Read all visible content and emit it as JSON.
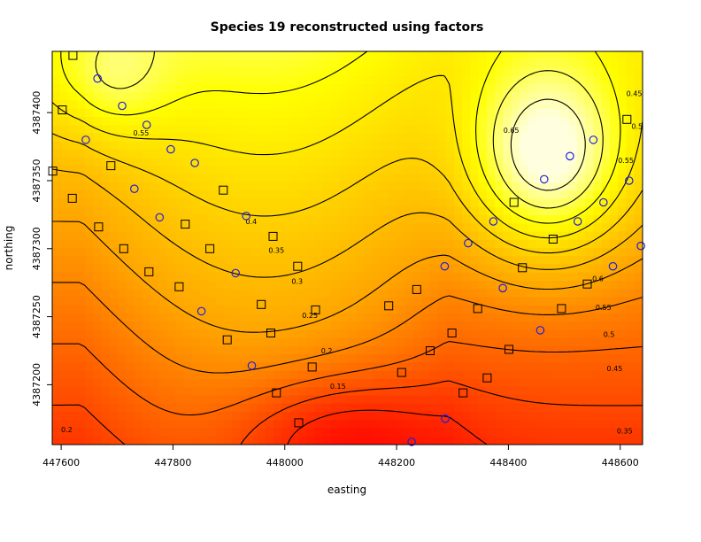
{
  "chart_data": {
    "type": "heatmap",
    "title": "Species 19 reconstructed using factors",
    "xlabel": "easting",
    "ylabel": "northing",
    "xlim": [
      447584,
      448640
    ],
    "ylim": [
      4387156,
      4387445
    ],
    "x_ticks": [
      447600,
      447800,
      448000,
      448200,
      448400,
      448600
    ],
    "y_ticks": [
      4387200,
      4387250,
      4387300,
      4387350,
      4387400
    ],
    "color_scale": {
      "low": "#ff0000",
      "mid": "#ffa500",
      "high_yellow": "#ffff00",
      "top": "#ffffe0"
    },
    "contour_levels": [
      0.1,
      0.15,
      0.2,
      0.25,
      0.3,
      0.35,
      0.4,
      0.45,
      0.5,
      0.55,
      0.6,
      0.65
    ],
    "contour_labels": [
      {
        "text": "0.65",
        "x": 448405,
        "y": 4387387
      },
      {
        "text": "0.6",
        "x": 448560,
        "y": 4387278
      },
      {
        "text": "0.55",
        "x": 448570,
        "y": 4387257
      },
      {
        "text": "0.5",
        "x": 448580,
        "y": 4387237
      },
      {
        "text": "0.45",
        "x": 448590,
        "y": 4387212
      },
      {
        "text": "0.4",
        "x": 447940,
        "y": 4387320
      },
      {
        "text": "0.35",
        "x": 447985,
        "y": 4387299
      },
      {
        "text": "0.3",
        "x": 448022,
        "y": 4387276
      },
      {
        "text": "0.25",
        "x": 448045,
        "y": 4387251
      },
      {
        "text": "0.2",
        "x": 448075,
        "y": 4387225
      },
      {
        "text": "0.15",
        "x": 448095,
        "y": 4387199
      },
      {
        "text": "0.55",
        "x": 447743,
        "y": 4387385
      },
      {
        "text": "0.45",
        "x": 448625,
        "y": 4387414
      },
      {
        "text": "0.5",
        "x": 448630,
        "y": 4387390
      },
      {
        "text": "0.55",
        "x": 448610,
        "y": 4387365
      },
      {
        "text": "0.35",
        "x": 448608,
        "y": 4387166
      },
      {
        "text": "0.2",
        "x": 447610,
        "y": 4387167
      }
    ],
    "squares": [
      [
        447621,
        4387442
      ],
      [
        447602,
        4387402
      ],
      [
        447585,
        4387357
      ],
      [
        447689,
        4387361
      ],
      [
        447620,
        4387337
      ],
      [
        447667,
        4387316
      ],
      [
        447712,
        4387300
      ],
      [
        447757,
        4387283
      ],
      [
        447811,
        4387272
      ],
      [
        447822,
        4387318
      ],
      [
        447866,
        4387300
      ],
      [
        447890,
        4387343
      ],
      [
        447979,
        4387309
      ],
      [
        448023,
        4387287
      ],
      [
        447958,
        4387259
      ],
      [
        448055,
        4387255
      ],
      [
        447897,
        4387233
      ],
      [
        447975,
        4387238
      ],
      [
        448049,
        4387213
      ],
      [
        447985,
        4387194
      ],
      [
        448025,
        4387172
      ],
      [
        448186,
        4387258
      ],
      [
        448209,
        4387209
      ],
      [
        448236,
        4387270
      ],
      [
        448260,
        4387225
      ],
      [
        448319,
        4387194
      ],
      [
        448299,
        4387238
      ],
      [
        448345,
        4387256
      ],
      [
        448362,
        4387205
      ],
      [
        448401,
        4387226
      ],
      [
        448410,
        4387334
      ],
      [
        448425,
        4387286
      ],
      [
        448495,
        4387256
      ],
      [
        448541,
        4387274
      ],
      [
        448480,
        4387307
      ],
      [
        448612,
        4387395
      ]
    ],
    "circles": [
      [
        447665,
        4387425
      ],
      [
        447709,
        4387405
      ],
      [
        447753,
        4387391
      ],
      [
        447644,
        4387380
      ],
      [
        447796,
        4387373
      ],
      [
        447839,
        4387363
      ],
      [
        447731,
        4387344
      ],
      [
        447776,
        4387323
      ],
      [
        447931,
        4387324
      ],
      [
        447912,
        4387282
      ],
      [
        447851,
        4387254
      ],
      [
        447941,
        4387214
      ],
      [
        448227,
        4387158
      ],
      [
        448287,
        4387175
      ],
      [
        448286,
        4387287
      ],
      [
        448328,
        4387304
      ],
      [
        448373,
        4387320
      ],
      [
        448390,
        4387271
      ],
      [
        448457,
        4387240
      ],
      [
        448464,
        4387351
      ],
      [
        448510,
        4387368
      ],
      [
        448524,
        4387320
      ],
      [
        448552,
        4387380
      ],
      [
        448570,
        4387334
      ],
      [
        448587,
        4387287
      ],
      [
        448616,
        4387350
      ],
      [
        448637,
        4387302
      ]
    ]
  }
}
